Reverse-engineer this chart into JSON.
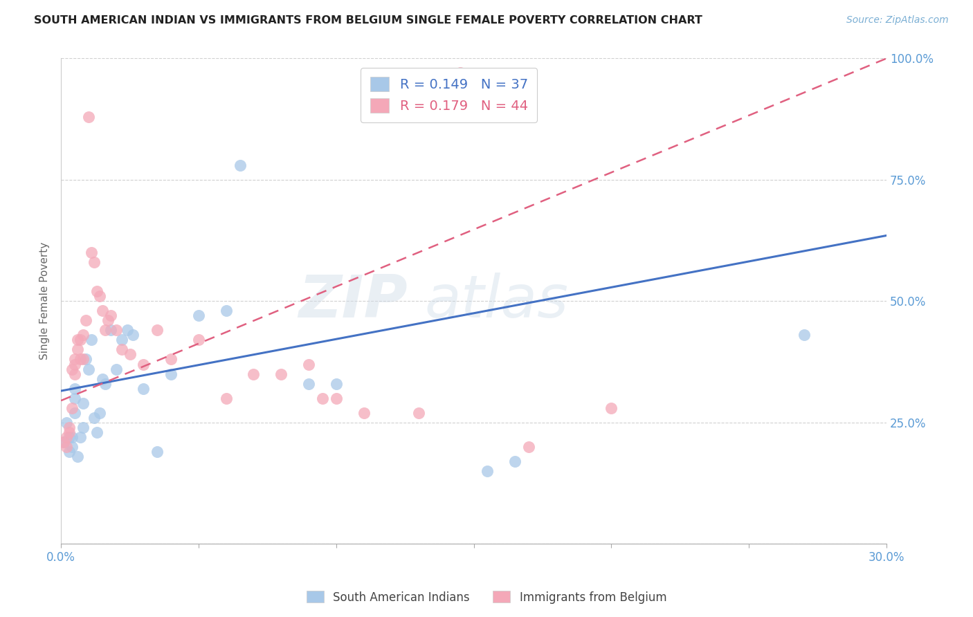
{
  "title": "SOUTH AMERICAN INDIAN VS IMMIGRANTS FROM BELGIUM SINGLE FEMALE POVERTY CORRELATION CHART",
  "source": "Source: ZipAtlas.com",
  "ylabel": "Single Female Poverty",
  "xlim": [
    0.0,
    0.3
  ],
  "ylim": [
    0.0,
    1.0
  ],
  "xticks": [
    0.0,
    0.05,
    0.1,
    0.15,
    0.2,
    0.25,
    0.3
  ],
  "xticklabels": [
    "0.0%",
    "",
    "",
    "",
    "",
    "",
    "30.0%"
  ],
  "yticks": [
    0.0,
    0.25,
    0.5,
    0.75,
    1.0
  ],
  "yticklabels": [
    "",
    "25.0%",
    "50.0%",
    "75.0%",
    "100.0%"
  ],
  "legend_label1": "South American Indians",
  "legend_label2": "Immigrants from Belgium",
  "R1": 0.149,
  "N1": 37,
  "R2": 0.179,
  "N2": 44,
  "blue_color": "#a8c8e8",
  "pink_color": "#f4a8b8",
  "axis_color": "#5b9bd5",
  "blue_line_color": "#4472c4",
  "pink_line_color": "#e06080",
  "watermark_text": "ZIPatlas",
  "blue_trend": [
    0.315,
    1.067
  ],
  "pink_trend": [
    0.295,
    2.35
  ],
  "blue_scatter_x": [
    0.001,
    0.002,
    0.003,
    0.003,
    0.004,
    0.004,
    0.005,
    0.005,
    0.005,
    0.006,
    0.007,
    0.008,
    0.008,
    0.009,
    0.01,
    0.011,
    0.012,
    0.013,
    0.014,
    0.015,
    0.016,
    0.018,
    0.02,
    0.022,
    0.024,
    0.026,
    0.03,
    0.035,
    0.04,
    0.05,
    0.06,
    0.065,
    0.09,
    0.1,
    0.155,
    0.165,
    0.27
  ],
  "blue_scatter_y": [
    0.21,
    0.25,
    0.22,
    0.19,
    0.22,
    0.2,
    0.32,
    0.3,
    0.27,
    0.18,
    0.22,
    0.24,
    0.29,
    0.38,
    0.36,
    0.42,
    0.26,
    0.23,
    0.27,
    0.34,
    0.33,
    0.44,
    0.36,
    0.42,
    0.44,
    0.43,
    0.32,
    0.19,
    0.35,
    0.47,
    0.48,
    0.78,
    0.33,
    0.33,
    0.15,
    0.17,
    0.43
  ],
  "pink_scatter_x": [
    0.001,
    0.002,
    0.002,
    0.003,
    0.003,
    0.004,
    0.004,
    0.005,
    0.005,
    0.005,
    0.006,
    0.006,
    0.007,
    0.007,
    0.008,
    0.008,
    0.009,
    0.01,
    0.011,
    0.012,
    0.013,
    0.014,
    0.015,
    0.016,
    0.017,
    0.018,
    0.02,
    0.022,
    0.025,
    0.03,
    0.035,
    0.04,
    0.05,
    0.06,
    0.07,
    0.08,
    0.09,
    0.095,
    0.1,
    0.11,
    0.13,
    0.145,
    0.17,
    0.2
  ],
  "pink_scatter_y": [
    0.21,
    0.2,
    0.22,
    0.23,
    0.24,
    0.28,
    0.36,
    0.38,
    0.37,
    0.35,
    0.4,
    0.42,
    0.38,
    0.42,
    0.43,
    0.38,
    0.46,
    0.88,
    0.6,
    0.58,
    0.52,
    0.51,
    0.48,
    0.44,
    0.46,
    0.47,
    0.44,
    0.4,
    0.39,
    0.37,
    0.44,
    0.38,
    0.42,
    0.3,
    0.35,
    0.35,
    0.37,
    0.3,
    0.3,
    0.27,
    0.27,
    0.97,
    0.2,
    0.28
  ]
}
